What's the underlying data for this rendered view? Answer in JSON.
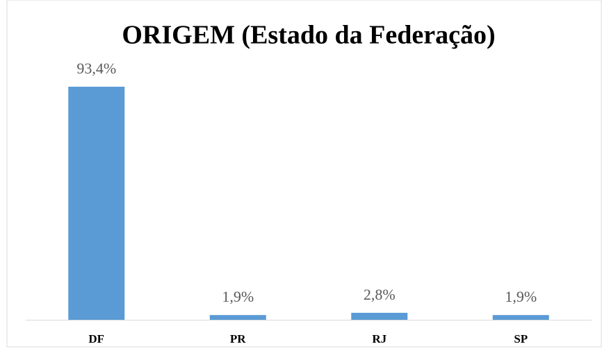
{
  "chart_data": {
    "type": "bar",
    "title": "ORIGEM (Estado da Federação)",
    "categories": [
      "DF",
      "PR",
      "RJ",
      "SP"
    ],
    "values": [
      93.4,
      1.9,
      2.8,
      1.9
    ],
    "value_labels": [
      "93,4%",
      "1,9%",
      "2,8%",
      "1,9%"
    ],
    "color": "#5b9bd5"
  }
}
